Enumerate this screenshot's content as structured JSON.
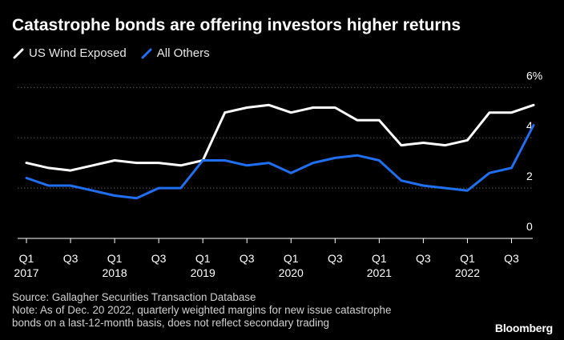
{
  "title": "Catastrophe bonds are offering investors higher returns",
  "legend": [
    {
      "label": "US Wind Exposed",
      "color": "#ffffff"
    },
    {
      "label": "All Others",
      "color": "#1f6ff0"
    }
  ],
  "chart_data": {
    "type": "line",
    "x": [
      "Q1 2017",
      "Q2 2017",
      "Q3 2017",
      "Q4 2017",
      "Q1 2018",
      "Q2 2018",
      "Q3 2018",
      "Q4 2018",
      "Q1 2019",
      "Q2 2019",
      "Q3 2019",
      "Q4 2019",
      "Q1 2020",
      "Q2 2020",
      "Q3 2020",
      "Q4 2020",
      "Q1 2021",
      "Q2 2021",
      "Q3 2021",
      "Q4 2021",
      "Q1 2022",
      "Q2 2022",
      "Q3 2022",
      "Q4 2022"
    ],
    "series": [
      {
        "name": "US Wind Exposed",
        "color": "#ffffff",
        "values": [
          3.0,
          2.8,
          2.7,
          2.9,
          3.1,
          3.0,
          3.0,
          2.9,
          3.1,
          5.0,
          5.2,
          5.3,
          5.0,
          5.2,
          5.2,
          4.7,
          4.7,
          3.7,
          3.8,
          3.7,
          3.9,
          5.0,
          5.0,
          5.3
        ]
      },
      {
        "name": "All Others",
        "color": "#1f6ff0",
        "values": [
          2.4,
          2.1,
          2.1,
          1.9,
          1.7,
          1.6,
          2.0,
          2.0,
          3.1,
          3.1,
          2.9,
          3.0,
          2.6,
          3.0,
          3.2,
          3.3,
          3.1,
          2.3,
          2.1,
          2.0,
          1.9,
          2.6,
          2.8,
          4.5
        ]
      }
    ],
    "y_ticks": [
      "0",
      "2",
      "4",
      "6%"
    ],
    "ylim": [
      0,
      6.2
    ],
    "grid": true,
    "y_axis_side": "right",
    "x_tick_labels": [
      {
        "index": 0,
        "quarter": "Q1",
        "year": "2017"
      },
      {
        "index": 2,
        "quarter": "Q3",
        "year": ""
      },
      {
        "index": 4,
        "quarter": "Q1",
        "year": "2018"
      },
      {
        "index": 6,
        "quarter": "Q3",
        "year": ""
      },
      {
        "index": 8,
        "quarter": "Q1",
        "year": "2019"
      },
      {
        "index": 10,
        "quarter": "Q3",
        "year": ""
      },
      {
        "index": 12,
        "quarter": "Q1",
        "year": "2020"
      },
      {
        "index": 14,
        "quarter": "Q3",
        "year": ""
      },
      {
        "index": 16,
        "quarter": "Q1",
        "year": "2021"
      },
      {
        "index": 18,
        "quarter": "Q3",
        "year": ""
      },
      {
        "index": 20,
        "quarter": "Q1",
        "year": "2022"
      },
      {
        "index": 22,
        "quarter": "Q3",
        "year": ""
      }
    ]
  },
  "footer": {
    "source": "Source: Gallagher Securities Transaction Database",
    "note_line1": "Note: As of Dec. 20 2022, quarterly weighted margins for new issue catastrophe",
    "note_line2": "bonds on a last-12-month basis, does not reflect secondary trading"
  },
  "brand": "Bloomberg",
  "colors": {
    "background": "#000000",
    "grid": "#5a5a5a",
    "axis": "#ffffff",
    "text": "#ffffff",
    "muted": "#cfcfcf"
  }
}
